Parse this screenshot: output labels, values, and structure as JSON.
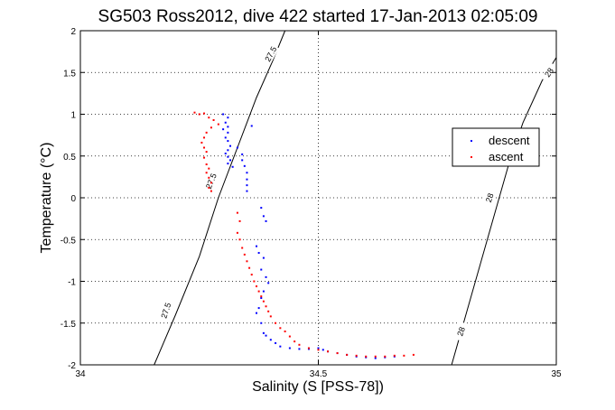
{
  "chart_data": {
    "type": "scatter",
    "title": "SG503 Ross2012, dive 422 started 17-Jan-2013 02:05:09",
    "xlabel": "Salinity (S [PSS-78])",
    "ylabel": "Temperature (°C)",
    "xlim": [
      34,
      35
    ],
    "ylim": [
      -2,
      2
    ],
    "xticks": [
      34,
      34.5,
      35
    ],
    "xtick_labels": [
      "34",
      "34.5",
      "35"
    ],
    "yticks": [
      -2,
      -1.5,
      -1,
      -0.5,
      0,
      0.5,
      1,
      1.5,
      2
    ],
    "ytick_labels": [
      "-2",
      "-1.5",
      "-1",
      "-0.5",
      "0",
      "0.5",
      "1",
      "1.5",
      "2"
    ],
    "grid": true,
    "legend_position": "right",
    "series": [
      {
        "name": "descent",
        "color": "#0000ff",
        "points": [
          [
            34.3,
            1.0
          ],
          [
            34.31,
            0.96
          ],
          [
            34.305,
            0.9
          ],
          [
            34.31,
            0.85
          ],
          [
            34.3,
            0.82
          ],
          [
            34.31,
            0.78
          ],
          [
            34.305,
            0.72
          ],
          [
            34.31,
            0.68
          ],
          [
            34.315,
            0.62
          ],
          [
            34.31,
            0.57
          ],
          [
            34.305,
            0.53
          ],
          [
            34.31,
            0.49
          ],
          [
            34.315,
            0.45
          ],
          [
            34.31,
            0.41
          ],
          [
            34.32,
            0.37
          ],
          [
            34.36,
            0.86
          ],
          [
            34.33,
            0.6
          ],
          [
            34.34,
            0.52
          ],
          [
            34.34,
            0.45
          ],
          [
            34.345,
            0.38
          ],
          [
            34.35,
            0.3
          ],
          [
            34.35,
            0.22
          ],
          [
            34.35,
            0.15
          ],
          [
            34.35,
            0.08
          ],
          [
            34.38,
            -0.12
          ],
          [
            34.385,
            -0.22
          ],
          [
            34.39,
            -0.28
          ],
          [
            34.37,
            -0.58
          ],
          [
            34.375,
            -0.66
          ],
          [
            34.385,
            -0.72
          ],
          [
            34.38,
            -0.86
          ],
          [
            34.39,
            -0.95
          ],
          [
            34.395,
            -1.02
          ],
          [
            34.385,
            -1.12
          ],
          [
            34.38,
            -1.2
          ],
          [
            34.375,
            -1.32
          ],
          [
            34.37,
            -1.38
          ],
          [
            34.38,
            -1.5
          ],
          [
            34.385,
            -1.62
          ],
          [
            34.39,
            -1.65
          ],
          [
            34.4,
            -1.7
          ],
          [
            34.41,
            -1.74
          ],
          [
            34.42,
            -1.78
          ],
          [
            34.44,
            -1.8
          ],
          [
            34.46,
            -1.81
          ],
          [
            34.48,
            -1.81
          ],
          [
            34.5,
            -1.8
          ],
          [
            34.51,
            -1.82
          ],
          [
            34.52,
            -1.84
          ],
          [
            34.54,
            -1.86
          ],
          [
            34.56,
            -1.88
          ],
          [
            34.58,
            -1.9
          ],
          [
            34.6,
            -1.91
          ],
          [
            34.62,
            -1.92
          ],
          [
            34.64,
            -1.91
          ],
          [
            34.66,
            -1.9
          ]
        ]
      },
      {
        "name": "ascent",
        "color": "#ff0000",
        "points": [
          [
            34.24,
            1.02
          ],
          [
            34.25,
            1.0
          ],
          [
            34.26,
            1.01
          ],
          [
            34.27,
            0.96
          ],
          [
            34.28,
            0.93
          ],
          [
            34.29,
            0.88
          ],
          [
            34.275,
            0.84
          ],
          [
            34.265,
            0.78
          ],
          [
            34.26,
            0.72
          ],
          [
            34.255,
            0.66
          ],
          [
            34.26,
            0.6
          ],
          [
            34.265,
            0.55
          ],
          [
            34.26,
            0.48
          ],
          [
            34.265,
            0.4
          ],
          [
            34.27,
            0.35
          ],
          [
            34.265,
            0.3
          ],
          [
            34.27,
            0.24
          ],
          [
            34.275,
            0.18
          ],
          [
            34.27,
            0.12
          ],
          [
            34.275,
            0.08
          ],
          [
            34.33,
            -0.18
          ],
          [
            34.335,
            -0.28
          ],
          [
            34.33,
            -0.42
          ],
          [
            34.335,
            -0.5
          ],
          [
            34.34,
            -0.6
          ],
          [
            34.345,
            -0.68
          ],
          [
            34.35,
            -0.76
          ],
          [
            34.355,
            -0.84
          ],
          [
            34.36,
            -0.92
          ],
          [
            34.365,
            -1.0
          ],
          [
            34.37,
            -1.06
          ],
          [
            34.375,
            -1.12
          ],
          [
            34.38,
            -1.18
          ],
          [
            34.385,
            -1.24
          ],
          [
            34.39,
            -1.3
          ],
          [
            34.395,
            -1.36
          ],
          [
            34.4,
            -1.42
          ],
          [
            34.41,
            -1.5
          ],
          [
            34.42,
            -1.56
          ],
          [
            34.43,
            -1.6
          ],
          [
            34.44,
            -1.66
          ],
          [
            34.45,
            -1.72
          ],
          [
            34.46,
            -1.76
          ],
          [
            34.48,
            -1.8
          ],
          [
            34.5,
            -1.82
          ],
          [
            34.52,
            -1.84
          ],
          [
            34.54,
            -1.86
          ],
          [
            34.56,
            -1.88
          ],
          [
            34.58,
            -1.89
          ],
          [
            34.6,
            -1.9
          ],
          [
            34.62,
            -1.9
          ],
          [
            34.64,
            -1.9
          ],
          [
            34.66,
            -1.89
          ],
          [
            34.68,
            -1.89
          ],
          [
            34.7,
            -1.88
          ]
        ]
      }
    ],
    "isopycnals": [
      {
        "label": "27.5",
        "points": [
          [
            34.155,
            -2
          ],
          [
            34.2,
            -1.4
          ],
          [
            34.25,
            -0.7
          ],
          [
            34.29,
            0.0
          ],
          [
            34.33,
            0.6
          ],
          [
            34.37,
            1.2
          ],
          [
            34.405,
            1.65
          ],
          [
            34.43,
            2.0
          ]
        ]
      },
      {
        "label": "28",
        "points": [
          [
            34.78,
            -2
          ],
          [
            34.81,
            -1.4
          ],
          [
            34.84,
            -0.8
          ],
          [
            34.87,
            -0.2
          ],
          [
            34.9,
            0.4
          ],
          [
            34.93,
            0.9
          ],
          [
            34.97,
            1.4
          ],
          [
            35.0,
            1.68
          ]
        ]
      }
    ],
    "isopycnal_labels": [
      {
        "text": "27.5",
        "x": 34.4,
        "y": 1.72,
        "angle": -62
      },
      {
        "text": "27.5",
        "x": 34.275,
        "y": 0.2,
        "angle": -68
      },
      {
        "text": "27.5",
        "x": 34.18,
        "y": -1.35,
        "angle": -72
      },
      {
        "text": "28",
        "x": 34.985,
        "y": 1.5,
        "angle": -55
      },
      {
        "text": "28",
        "x": 34.86,
        "y": 0.0,
        "angle": -70
      },
      {
        "text": "28",
        "x": 34.8,
        "y": -1.6,
        "angle": -72
      }
    ]
  }
}
